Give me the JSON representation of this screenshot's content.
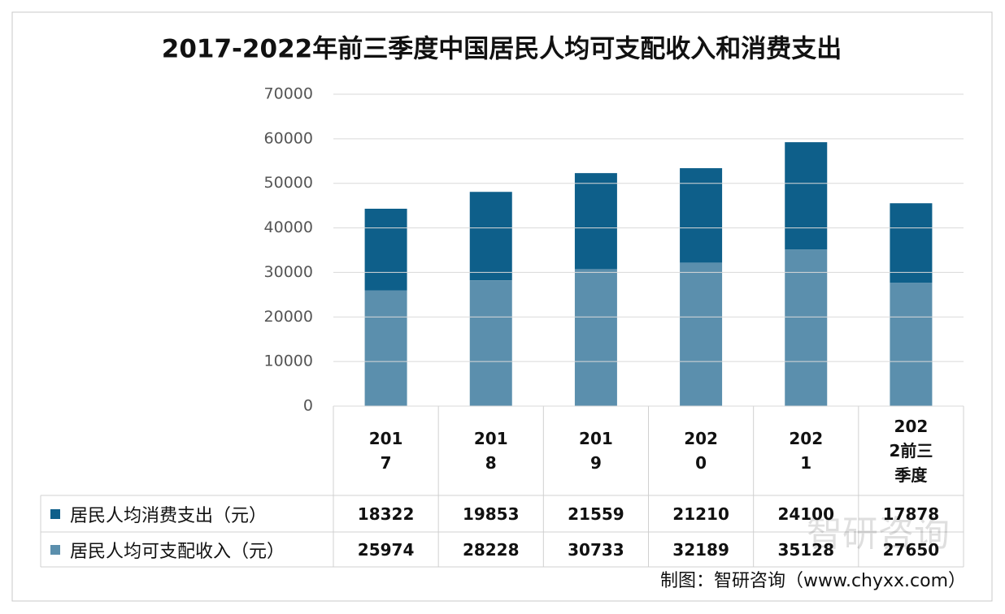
{
  "chart_data": {
    "type": "bar",
    "stacked": true,
    "title": "2017-2022年前三季度中国居民人均可支配收入和消费支出",
    "categories": [
      "2017",
      "2018",
      "2019",
      "2020",
      "2021",
      "2022前三季度"
    ],
    "series": [
      {
        "name": "居民人均消费支出（元）",
        "color": "#0e5f8a",
        "values": [
          18322,
          19853,
          21559,
          21210,
          24100,
          17878
        ]
      },
      {
        "name": "居民人均可支配收入（元）",
        "color": "#5b8fad",
        "values": [
          25974,
          28228,
          30733,
          32189,
          35128,
          27650
        ]
      }
    ],
    "ylim": [
      0,
      70000
    ],
    "yticks": [
      0,
      10000,
      20000,
      30000,
      40000,
      50000,
      60000,
      70000
    ],
    "grid": true,
    "watermark": "智研咨询",
    "source": "制图：智研咨询（www.chyxx.com）"
  }
}
